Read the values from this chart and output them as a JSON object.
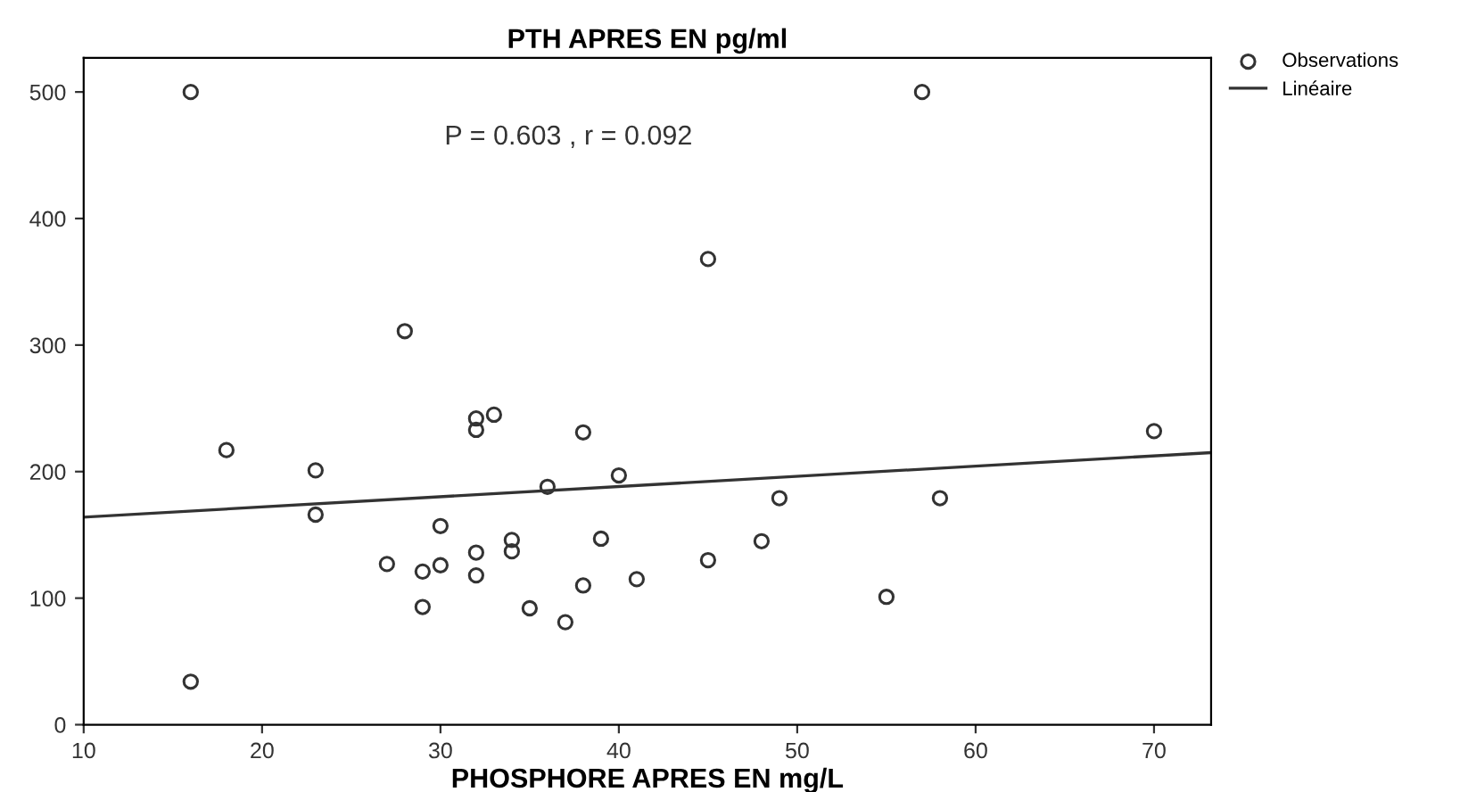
{
  "chart_data": {
    "type": "scatter",
    "title": "PTH APRES EN pg/ml",
    "xlabel": "PHOSPHORE APRES EN mg/L",
    "annotations": [
      "P = 0.603 , r = 0.092"
    ],
    "xlim": [
      10,
      73.2
    ],
    "ylim": [
      0,
      527
    ],
    "xticks": [
      10,
      20,
      30,
      40,
      50,
      60,
      70
    ],
    "yticks": [
      0,
      100,
      200,
      300,
      400,
      500
    ],
    "grid": false,
    "legend": "top right",
    "series": [
      {
        "name": "Observations",
        "marker": "circle",
        "color": "#333333",
        "x": [
          16,
          18,
          23,
          23,
          27,
          29,
          29,
          30,
          30,
          32,
          32,
          33,
          32,
          32,
          34,
          34,
          35,
          37,
          36,
          38,
          38,
          39,
          40,
          41,
          45,
          48,
          49,
          55,
          58,
          70,
          16,
          28,
          45,
          57
        ],
        "values": [
          34,
          217,
          201,
          166,
          127,
          121,
          93,
          157,
          126,
          242,
          233,
          245,
          136,
          118,
          146,
          137,
          92,
          81,
          188,
          231,
          110,
          147,
          197,
          115,
          130,
          145,
          179,
          101,
          179,
          232,
          500,
          311,
          368,
          500
        ]
      },
      {
        "name": "Linéaire",
        "type": "line",
        "marker": "none",
        "color": "#333333",
        "line_style": "solid",
        "x": [
          10,
          73.2
        ],
        "values": [
          164,
          215
        ]
      }
    ]
  }
}
